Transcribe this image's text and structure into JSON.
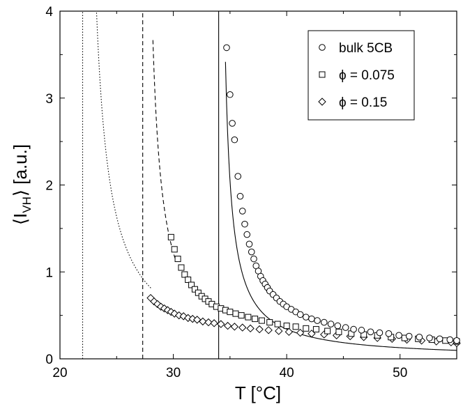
{
  "chart_data": {
    "type": "scatter",
    "xlabel": "T [°C]",
    "ylabel": "⟨I",
    "ylabel_sub": "VH",
    "ylabel_close": "⟩ [a.u.]",
    "xlim": [
      20,
      55
    ],
    "ylim": [
      0,
      4
    ],
    "x_ticks": [
      20,
      30,
      40,
      50
    ],
    "y_ticks": [
      0,
      1,
      2,
      3,
      4
    ],
    "x_tick_labels": [
      "20",
      "30",
      "40",
      "50"
    ],
    "y_tick_labels": [
      "0",
      "1",
      "2",
      "3",
      "4"
    ],
    "grid": false,
    "legend_position": "top-right",
    "legend": [
      {
        "marker": "circle",
        "text": "bulk 5CB"
      },
      {
        "marker": "square",
        "text": "ϕ = 0.075"
      },
      {
        "marker": "diamond",
        "text": "ϕ = 0.15"
      }
    ],
    "series": [
      {
        "name": "bulk 5CB",
        "marker": "circle",
        "x": [
          34.7,
          35.0,
          35.2,
          35.4,
          35.7,
          35.9,
          36.1,
          36.3,
          36.5,
          36.7,
          36.9,
          37.1,
          37.3,
          37.5,
          37.7,
          37.9,
          38.1,
          38.3,
          38.5,
          38.8,
          39.1,
          39.4,
          39.7,
          40.0,
          40.4,
          40.8,
          41.2,
          41.7,
          42.2,
          42.7,
          43.3,
          43.9,
          44.5,
          45.2,
          45.9,
          46.6,
          47.4,
          48.2,
          49.0,
          49.9,
          50.8,
          51.7,
          52.6,
          53.5,
          54.4,
          55.0
        ],
        "y": [
          3.58,
          3.04,
          2.71,
          2.52,
          2.1,
          1.87,
          1.7,
          1.55,
          1.43,
          1.32,
          1.23,
          1.15,
          1.07,
          1.01,
          0.95,
          0.9,
          0.86,
          0.82,
          0.78,
          0.74,
          0.7,
          0.66,
          0.63,
          0.6,
          0.57,
          0.54,
          0.51,
          0.48,
          0.46,
          0.44,
          0.42,
          0.4,
          0.38,
          0.36,
          0.34,
          0.33,
          0.31,
          0.3,
          0.29,
          0.27,
          0.26,
          0.25,
          0.24,
          0.23,
          0.22,
          0.21
        ]
      },
      {
        "name": "ϕ = 0.075",
        "marker": "square",
        "x": [
          29.8,
          30.1,
          30.4,
          30.7,
          31.0,
          31.3,
          31.6,
          31.9,
          32.2,
          32.5,
          32.8,
          33.1,
          33.4,
          33.8,
          34.2,
          34.6,
          35.0,
          35.5,
          36.0,
          36.6,
          37.2,
          37.8,
          38.5,
          39.2,
          40.0,
          40.8,
          41.7,
          42.6,
          43.6,
          44.6,
          45.7,
          46.8,
          48.0,
          49.2,
          50.4,
          51.6,
          52.8,
          54.0,
          55.0
        ],
        "y": [
          1.4,
          1.26,
          1.15,
          1.05,
          0.97,
          0.91,
          0.85,
          0.8,
          0.76,
          0.72,
          0.69,
          0.66,
          0.63,
          0.6,
          0.58,
          0.56,
          0.54,
          0.52,
          0.5,
          0.48,
          0.46,
          0.44,
          0.42,
          0.4,
          0.38,
          0.37,
          0.35,
          0.34,
          0.32,
          0.31,
          0.29,
          0.28,
          0.27,
          0.25,
          0.24,
          0.23,
          0.22,
          0.21,
          0.2
        ]
      },
      {
        "name": "ϕ = 0.15",
        "marker": "diamond",
        "x": [
          28.0,
          28.3,
          28.6,
          28.9,
          29.2,
          29.5,
          29.8,
          30.1,
          30.5,
          30.9,
          31.3,
          31.7,
          32.1,
          32.6,
          33.1,
          33.6,
          34.2,
          34.8,
          35.4,
          36.1,
          36.8,
          37.6,
          38.4,
          39.3,
          40.2,
          41.2,
          42.2,
          43.3,
          44.4,
          45.6,
          46.8,
          48.0,
          49.3,
          50.6,
          51.9,
          53.2,
          54.5,
          55.0
        ],
        "y": [
          0.7,
          0.66,
          0.63,
          0.6,
          0.58,
          0.56,
          0.54,
          0.52,
          0.5,
          0.49,
          0.47,
          0.46,
          0.45,
          0.43,
          0.42,
          0.41,
          0.4,
          0.38,
          0.37,
          0.36,
          0.35,
          0.34,
          0.33,
          0.32,
          0.31,
          0.3,
          0.29,
          0.28,
          0.27,
          0.26,
          0.25,
          0.24,
          0.23,
          0.22,
          0.21,
          0.2,
          0.19,
          0.18
        ]
      }
    ],
    "fit_curves": [
      {
        "style": "solid",
        "Tc": 34.0,
        "A": 2.05,
        "x_start": 34.6,
        "x_end": 55
      },
      {
        "style": "dashed",
        "Tc": 27.3,
        "A": 3.3,
        "x_start": 28.2,
        "x_end": 30.2
      },
      {
        "style": "dotted",
        "Tc": 22.0,
        "A": 4.9,
        "x_start": 23.1,
        "x_end": 28.1
      }
    ],
    "vertical_lines": [
      {
        "x": 34.0,
        "style": "solid"
      },
      {
        "x": 27.3,
        "style": "dashed"
      },
      {
        "x": 22.0,
        "style": "dotted"
      }
    ]
  }
}
